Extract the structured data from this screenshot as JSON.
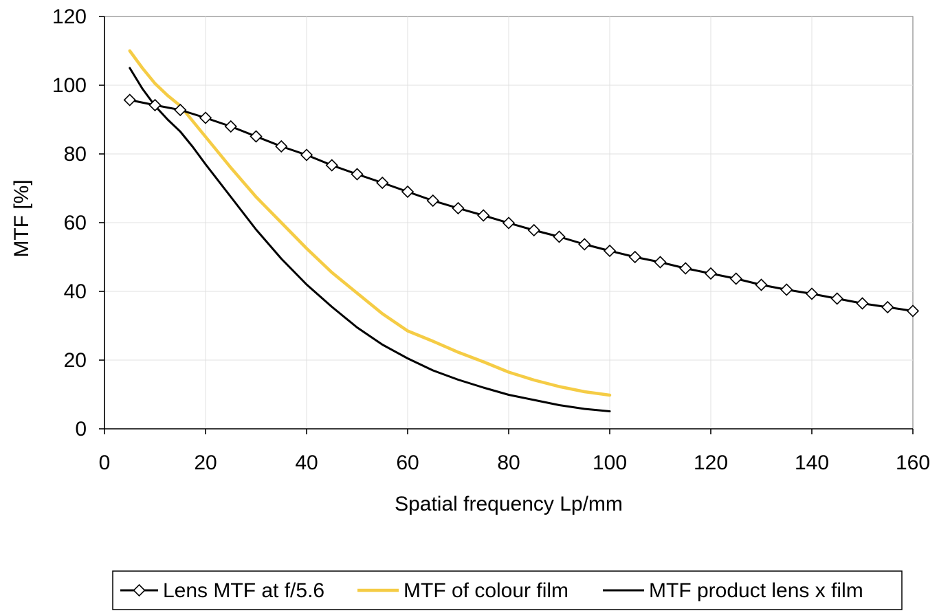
{
  "chart_data": {
    "type": "line",
    "title": "",
    "xlabel": "Spatial frequency  Lp/mm",
    "ylabel": "MTF  [%]",
    "xlim": [
      0,
      160
    ],
    "ylim": [
      0,
      120
    ],
    "xticks": [
      0,
      20,
      40,
      60,
      80,
      100,
      120,
      140,
      160
    ],
    "yticks": [
      0,
      20,
      40,
      60,
      80,
      100,
      120
    ],
    "grid": true,
    "legend_position": "bottom",
    "series": [
      {
        "name": "Lens MTF at f/5.6",
        "color": "#000000",
        "marker": "diamond-open",
        "x": [
          5,
          10,
          15,
          20,
          25,
          30,
          35,
          40,
          45,
          50,
          55,
          60,
          65,
          70,
          75,
          80,
          85,
          90,
          95,
          100,
          105,
          110,
          115,
          120,
          125,
          130,
          135,
          140,
          145,
          150,
          155,
          160
        ],
        "y": [
          95.7,
          94.2,
          92.8,
          90.5,
          88.0,
          85.1,
          82.2,
          79.7,
          76.7,
          74.1,
          71.6,
          69.0,
          66.4,
          64.2,
          62.1,
          59.9,
          57.8,
          55.9,
          53.7,
          51.8,
          50.0,
          48.5,
          46.7,
          45.2,
          43.7,
          41.9,
          40.5,
          39.3,
          37.9,
          36.5,
          35.4,
          34.3
        ]
      },
      {
        "name": "MTF of colour film",
        "color": "#f5cc45",
        "marker": "none",
        "x": [
          5,
          7.5,
          10,
          12.5,
          15,
          17.5,
          20,
          25,
          30,
          35,
          40,
          45,
          50,
          55,
          60,
          65,
          70,
          75,
          80,
          85,
          90,
          95,
          100
        ],
        "y": [
          110,
          105,
          100.5,
          97,
          94,
          89.5,
          85,
          76,
          67.5,
          60,
          52.5,
          45.5,
          39.5,
          33.5,
          28.5,
          25.5,
          22.3,
          19.5,
          16.5,
          14.2,
          12.3,
          10.8,
          9.8
        ]
      },
      {
        "name": "MTF product lens x film",
        "color": "#000000",
        "marker": "none",
        "x": [
          5,
          7.5,
          10,
          12.5,
          15,
          17.5,
          20,
          25,
          30,
          35,
          40,
          45,
          50,
          55,
          60,
          65,
          70,
          75,
          80,
          85,
          90,
          95,
          100
        ],
        "y": [
          105,
          99,
          94,
          90,
          86.5,
          82,
          77,
          67.5,
          58,
          49.5,
          42,
          35.5,
          29.5,
          24.5,
          20.5,
          17,
          14.3,
          12,
          9.9,
          8.4,
          6.9,
          5.8,
          5.1
        ]
      }
    ]
  }
}
